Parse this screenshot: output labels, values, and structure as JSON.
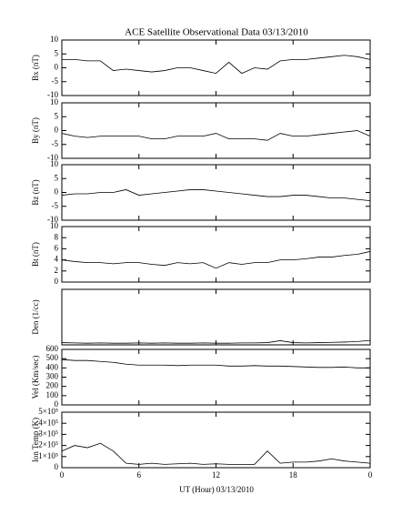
{
  "chart_data": [
    {
      "type": "line",
      "title": "ACE Satellite Observational Data   03/13/2010",
      "ylabel": "Bx (nT)",
      "color": "#000000",
      "x": [
        0,
        1,
        2,
        3,
        4,
        5,
        6,
        7,
        8,
        9,
        10,
        11,
        12,
        13,
        14,
        15,
        16,
        17,
        18,
        19,
        20,
        21,
        22,
        23,
        24
      ],
      "values": [
        3,
        3,
        2.5,
        2.5,
        -1,
        -0.5,
        -1,
        -1.5,
        -1,
        0,
        0,
        -1,
        -2,
        2,
        -2,
        0,
        -0.5,
        2.5,
        3,
        3,
        3.5,
        4,
        4.5,
        4,
        3
      ],
      "ylim": [
        -10,
        10
      ],
      "yticks": [
        -10,
        -5,
        0,
        5,
        10
      ]
    },
    {
      "type": "line",
      "ylabel": "By (nT)",
      "color": "#000000",
      "x": [
        0,
        1,
        2,
        3,
        4,
        5,
        6,
        7,
        8,
        9,
        10,
        11,
        12,
        13,
        14,
        15,
        16,
        17,
        18,
        19,
        20,
        21,
        22,
        23,
        24
      ],
      "values": [
        -1,
        -2,
        -2.5,
        -2,
        -2,
        -2,
        -2,
        -3,
        -3,
        -2,
        -2,
        -2,
        -1,
        -3,
        -3,
        -3,
        -3.5,
        -1,
        -2,
        -2,
        -1.5,
        -1,
        -0.5,
        0,
        -2
      ],
      "ylim": [
        -10,
        10
      ],
      "yticks": [
        -10,
        -5,
        0,
        5,
        10
      ]
    },
    {
      "type": "line",
      "ylabel": "Bz (nT)",
      "color": "#000000",
      "x": [
        0,
        1,
        2,
        3,
        4,
        5,
        6,
        7,
        8,
        9,
        10,
        11,
        12,
        13,
        14,
        15,
        16,
        17,
        18,
        19,
        20,
        21,
        22,
        23,
        24
      ],
      "values": [
        -1,
        -0.5,
        -0.5,
        0,
        0,
        1,
        -1,
        -0.5,
        0,
        0.5,
        1,
        1,
        0.5,
        0,
        -0.5,
        -1,
        -1.5,
        -1.5,
        -1,
        -1,
        -1.5,
        -2,
        -2,
        -2.5,
        -3
      ],
      "ylim": [
        -10,
        10
      ],
      "yticks": [
        -10,
        -5,
        0,
        5,
        10
      ]
    },
    {
      "type": "line",
      "ylabel": "Bt (nT)",
      "color": "#000000",
      "x": [
        0,
        1,
        2,
        3,
        4,
        5,
        6,
        7,
        8,
        9,
        10,
        11,
        12,
        13,
        14,
        15,
        16,
        17,
        18,
        19,
        20,
        21,
        22,
        23,
        24
      ],
      "values": [
        4,
        3.7,
        3.5,
        3.5,
        3.3,
        3.5,
        3.5,
        3.2,
        3,
        3.5,
        3.3,
        3.5,
        2.5,
        3.5,
        3.2,
        3.5,
        3.5,
        4,
        4,
        4.2,
        4.5,
        4.5,
        4.8,
        5,
        5.5
      ],
      "ylim": [
        0,
        10
      ],
      "yticks": [
        0,
        2,
        4,
        6,
        8,
        10
      ]
    },
    {
      "type": "line",
      "ylabel": "Den (1/cc)",
      "color": "#000000",
      "x": [
        0,
        1,
        2,
        3,
        4,
        5,
        6,
        7,
        8,
        9,
        10,
        11,
        12,
        13,
        14,
        15,
        16,
        17,
        18,
        19,
        20,
        21,
        22,
        23,
        24
      ],
      "values": [
        0.8,
        0.7,
        0.6,
        0.7,
        0.6,
        0.6,
        0.7,
        0.6,
        0.7,
        0.6,
        0.6,
        0.7,
        0.6,
        0.6,
        0.7,
        0.7,
        0.8,
        1.5,
        0.8,
        0.7,
        0.8,
        0.9,
        1,
        1.2,
        1.6
      ],
      "ylim": [
        0,
        20
      ]
    },
    {
      "type": "line",
      "ylabel": "Vel (Km/sec)",
      "color": "#000000",
      "x": [
        0,
        1,
        2,
        3,
        4,
        5,
        6,
        7,
        8,
        9,
        10,
        11,
        12,
        13,
        14,
        15,
        16,
        17,
        18,
        19,
        20,
        21,
        22,
        23,
        24
      ],
      "values": [
        490,
        480,
        480,
        470,
        460,
        440,
        430,
        430,
        430,
        425,
        430,
        430,
        430,
        420,
        420,
        425,
        420,
        420,
        415,
        410,
        405,
        405,
        410,
        400,
        400
      ],
      "ylim": [
        0,
        600
      ],
      "yticks": [
        0,
        100,
        200,
        300,
        400,
        500,
        600
      ]
    },
    {
      "type": "line",
      "ylabel": "Ion Temp (K)",
      "xlabel": "UT (Hour)   03/13/2010",
      "color": "#000000",
      "x": [
        0,
        1,
        2,
        3,
        4,
        5,
        6,
        7,
        8,
        9,
        10,
        11,
        12,
        13,
        14,
        15,
        16,
        17,
        18,
        19,
        20,
        21,
        22,
        23,
        24
      ],
      "values": [
        150000,
        200000,
        180000,
        220000,
        150000,
        40000,
        30000,
        40000,
        30000,
        35000,
        40000,
        30000,
        35000,
        30000,
        30000,
        30000,
        150000,
        40000,
        50000,
        50000,
        60000,
        80000,
        60000,
        50000,
        40000
      ],
      "ylim": [
        0,
        500000
      ],
      "yticks": [
        0,
        {
          "value": 100000,
          "label": "1×10⁵"
        },
        {
          "value": 200000,
          "label": "2×10⁵"
        },
        {
          "value": 300000,
          "label": "3×10⁵"
        },
        {
          "value": 400000,
          "label": "4×10⁵"
        },
        {
          "value": 500000,
          "label": "5×10⁵"
        }
      ],
      "xlim": [
        0,
        24
      ],
      "xticks": [
        0,
        6,
        12,
        18,
        {
          "value": 24,
          "label": "0"
        }
      ]
    }
  ]
}
